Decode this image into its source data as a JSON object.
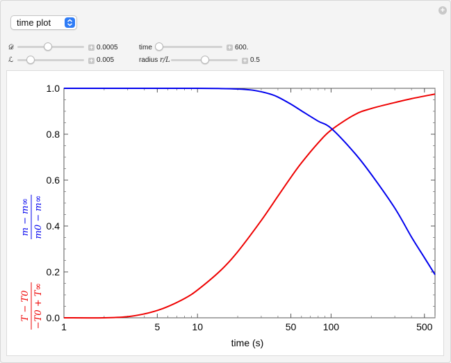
{
  "header": {
    "view_select": {
      "value": "time plot"
    }
  },
  "controls": {
    "D": {
      "symbol": "𝒟",
      "value_text": "0.0005",
      "value": 0.0005
    },
    "L": {
      "symbol": "ℒ",
      "value_text": "0.005",
      "value": 0.005
    },
    "time": {
      "label": "time",
      "value_text": "600.",
      "value": 600
    },
    "radius": {
      "label_prefix": "radius ",
      "label_math": "r/L",
      "value_text": "0.5",
      "value": 0.5
    }
  },
  "chart_data": {
    "type": "line",
    "xlabel": "time (s)",
    "xscale": "log",
    "xlim": [
      1,
      600
    ],
    "ylim": [
      0,
      1
    ],
    "xticks": [
      1,
      5,
      10,
      50,
      100,
      500
    ],
    "xtick_labels": [
      "1",
      "5",
      "10",
      "50",
      "100",
      "500"
    ],
    "yticks": [
      0,
      0.2,
      0.4,
      0.6,
      0.8,
      1.0
    ],
    "ytick_labels": [
      "0.0",
      "0.2",
      "0.4",
      "0.6",
      "0.8",
      "1.0"
    ],
    "ylabel_blue": {
      "numerator": "m − m∞",
      "denominator": "m0 − m∞"
    },
    "ylabel_red": {
      "numerator": "T − T0",
      "denominator": "−T0 + T∞"
    },
    "colors": {
      "temperature": "#ee0000",
      "mass": "#0000ee"
    },
    "series": [
      {
        "color": "#ee0000",
        "x": [
          1,
          2,
          3,
          4,
          5,
          6,
          8,
          10,
          15,
          20,
          30,
          40,
          50,
          60,
          80,
          100,
          150,
          200,
          300,
          400,
          600
        ],
        "y": [
          0.0,
          0.0,
          0.005,
          0.017,
          0.032,
          0.049,
          0.084,
          0.121,
          0.208,
          0.288,
          0.424,
          0.53,
          0.612,
          0.675,
          0.762,
          0.818,
          0.885,
          0.912,
          0.938,
          0.955,
          0.975
        ]
      },
      {
        "color": "#0000ee",
        "x": [
          1,
          5,
          10,
          15,
          20,
          25,
          30,
          35,
          40,
          50,
          60,
          80,
          100,
          150,
          200,
          300,
          400,
          500,
          600
        ],
        "y": [
          1.0,
          1.0,
          1.0,
          0.999,
          0.997,
          0.993,
          0.985,
          0.975,
          0.962,
          0.931,
          0.902,
          0.857,
          0.826,
          0.718,
          0.625,
          0.478,
          0.352,
          0.262,
          0.188
        ]
      }
    ]
  }
}
